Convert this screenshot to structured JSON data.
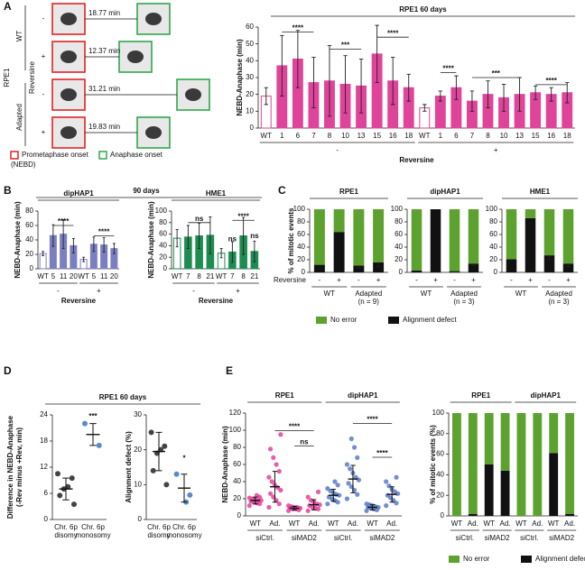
{
  "panel_labels": [
    "A",
    "B",
    "C",
    "D",
    "E"
  ],
  "panel_a": {
    "cell_line": "RPE1",
    "conditions": [
      "WT",
      "Adapted"
    ],
    "treatment": "Reversine",
    "rows": [
      {
        "sign": "-",
        "time": "18.77 min"
      },
      {
        "sign": "+",
        "time": "12.37 min"
      },
      {
        "sign": "-",
        "time": "31.21 min"
      },
      {
        "sign": "+",
        "time": "19.83 min"
      }
    ],
    "legend": [
      "Prometaphase onset",
      "(NEBD)",
      "Anaphase onset"
    ]
  },
  "figure_b_title": "90 days",
  "chart_data": [
    {
      "type": "bar",
      "title": "RPE1 60 days",
      "title_color": "#e0449a",
      "ylabel": "NEBD-Anaphase (min)",
      "ylim": [
        0,
        60
      ],
      "yticks": [
        0,
        10,
        20,
        30,
        40,
        50,
        60
      ],
      "categories": [
        "WT",
        "1",
        "6",
        "7",
        "8",
        "10",
        "13",
        "15",
        "16",
        "18",
        "WT",
        "1",
        "6",
        "7",
        "8",
        "10",
        "13",
        "15",
        "16",
        "18"
      ],
      "values": [
        19,
        37,
        41,
        27,
        28,
        26,
        25,
        44,
        28,
        24,
        12,
        19,
        24,
        16,
        20,
        18,
        20,
        21,
        20,
        21
      ],
      "errors": [
        5,
        18,
        17,
        15,
        21,
        17,
        16,
        17,
        14,
        8,
        2,
        3,
        7,
        6,
        8,
        8,
        10,
        4,
        4,
        6
      ],
      "colors": [
        "#ffffff",
        "#e0449a",
        "#e0449a",
        "#e0449a",
        "#e0449a",
        "#e0449a",
        "#e0449a",
        "#e0449a",
        "#e0449a",
        "#e0449a",
        "#ffffff",
        "#e0449a",
        "#e0449a",
        "#e0449a",
        "#e0449a",
        "#e0449a",
        "#e0449a",
        "#e0449a",
        "#e0449a",
        "#e0449a"
      ],
      "color": "#e0449a",
      "groups": [
        "-",
        "+"
      ],
      "group_title": "Reversine",
      "significance": [
        "****",
        "***",
        "****",
        "****",
        "***",
        "****"
      ]
    },
    {
      "type": "bar",
      "title": "dipHAP1",
      "title_color": "#7b7fc2",
      "ylabel": "NEBD-Anaphase (min)",
      "ylim": [
        0,
        80
      ],
      "yticks": [
        0,
        20,
        40,
        60,
        80
      ],
      "categories": [
        "WT",
        "5",
        "11",
        "20",
        "WT",
        "5",
        "11",
        "20"
      ],
      "values": [
        21,
        46,
        48,
        32,
        13,
        34,
        33,
        28
      ],
      "errors": [
        3,
        15,
        20,
        10,
        3,
        10,
        10,
        7
      ],
      "colors": [
        "#ffffff",
        "#7b7fc2",
        "#7b7fc2",
        "#7b7fc2",
        "#ffffff",
        "#7b7fc2",
        "#7b7fc2",
        "#7b7fc2"
      ],
      "color": "#7b7fc2",
      "groups": [
        "-",
        "+"
      ],
      "group_title": "Reversine",
      "significance": [
        "****",
        "****"
      ]
    },
    {
      "type": "bar",
      "title": "HME1",
      "title_color": "#1e8c50",
      "ylabel": "NEBD-Anaphase (min)",
      "ylim": [
        0,
        100
      ],
      "yticks": [
        0,
        20,
        40,
        60,
        80,
        100
      ],
      "categories": [
        "WT",
        "7",
        "8",
        "21",
        "WT",
        "7",
        "8",
        "21"
      ],
      "values": [
        53,
        55,
        57,
        58,
        27,
        29,
        57,
        30
      ],
      "errors": [
        15,
        20,
        22,
        32,
        8,
        18,
        32,
        18
      ],
      "colors": [
        "#ffffff",
        "#1e8c50",
        "#1e8c50",
        "#1e8c50",
        "#ffffff",
        "#1e8c50",
        "#1e8c50",
        "#1e8c50"
      ],
      "color": "#1e8c50",
      "groups": [
        "-",
        "+"
      ],
      "group_title": "Reversine",
      "significance": [
        "ns",
        "****",
        "ns",
        "ns"
      ]
    },
    {
      "type": "stacked_bar",
      "title": "RPE1",
      "title_color": "#e0449a",
      "ylabel": "% of mitotic events",
      "ylim": [
        0,
        100
      ],
      "yticks": [
        0,
        20,
        40,
        60,
        80,
        100
      ],
      "categories": [
        "-",
        "+",
        "-",
        "+"
      ],
      "row_label": "Reversine",
      "groups": [
        [
          "WT"
        ],
        [
          "Adapted",
          "(n = 9)"
        ]
      ],
      "series": [
        {
          "name": "No error",
          "color": "#5da12e",
          "values": [
            88,
            36,
            89,
            84
          ]
        },
        {
          "name": "Alignment defect",
          "color": "#111111",
          "values": [
            12,
            64,
            11,
            16
          ],
          "errors": [
            null,
            null,
            4,
            7
          ]
        }
      ]
    },
    {
      "type": "stacked_bar",
      "title": "dipHAP1",
      "title_color": "#7b7fc2",
      "ylim": [
        0,
        100
      ],
      "yticks": [
        0,
        20,
        40,
        60,
        80,
        100
      ],
      "categories": [
        "-",
        "+",
        "-",
        "+"
      ],
      "groups": [
        [
          "WT"
        ],
        [
          "Adapted",
          "(n = 3)"
        ]
      ],
      "series": [
        {
          "name": "No error",
          "color": "#5da12e",
          "values": [
            97,
            0,
            98,
            86
          ]
        },
        {
          "name": "Alignment defect",
          "color": "#111111",
          "values": [
            3,
            100,
            2,
            14
          ],
          "errors": [
            null,
            null,
            1,
            3
          ]
        }
      ]
    },
    {
      "type": "stacked_bar",
      "title": "HME1",
      "title_color": "#1e8c50",
      "ylim": [
        0,
        100
      ],
      "yticks": [
        0,
        20,
        40,
        60,
        80,
        100
      ],
      "categories": [
        "-",
        "+",
        "-",
        "+"
      ],
      "groups": [
        [
          "WT"
        ],
        [
          "Adapted",
          "(n = 3)"
        ]
      ],
      "series": [
        {
          "name": "No error",
          "color": "#5da12e",
          "values": [
            79,
            14,
            73,
            86
          ]
        },
        {
          "name": "Alignment defect",
          "color": "#111111",
          "values": [
            21,
            86,
            27,
            14
          ],
          "errors": [
            null,
            null,
            6,
            5
          ]
        }
      ]
    },
    {
      "type": "dot",
      "title": "RPE1 60 days",
      "title_color": "#e0449a",
      "ylabel": [
        "Difference in NEBD-Anaphase",
        "(-Rev minus +Rev, min)"
      ],
      "ylim": [
        0,
        24
      ],
      "yticks": [
        0,
        6,
        12,
        18,
        24
      ],
      "categories": [
        [
          "Chr. 6p",
          "disomy"
        ],
        [
          "Chr. 6p",
          "monosomy"
        ]
      ],
      "points": [
        [
          10.5,
          9.5,
          7.5,
          7,
          5.5,
          3.5
        ],
        [
          22,
          17
        ]
      ],
      "means": [
        7,
        19.5
      ],
      "sds": [
        2.5,
        2.5
      ],
      "point_colors": [
        "#222222",
        "#3a78c0"
      ],
      "significance": [
        "***"
      ]
    },
    {
      "type": "dot",
      "ylabel": "Alignment defect (%)",
      "ylim": [
        0,
        30
      ],
      "yticks": [
        0,
        10,
        20,
        30
      ],
      "categories": [
        [
          "Chr. 6p",
          "disomy"
        ],
        [
          "Chr. 6p",
          "monosomy"
        ]
      ],
      "points": [
        [
          25,
          21,
          20,
          19,
          14,
          10
        ],
        [
          13,
          7,
          5
        ]
      ],
      "means": [
        19.5,
        9
      ],
      "sds": [
        5.5,
        4
      ],
      "point_colors": [
        "#222222",
        "#3a78c0"
      ],
      "significance": [
        "*"
      ]
    },
    {
      "type": "dot",
      "titles": [
        "RPE1",
        "dipHAP1"
      ],
      "title_colors": [
        "#e0449a",
        "#5a7bc4"
      ],
      "ylabel": "NEBD-Anaphase (min)",
      "ylim": [
        0,
        120
      ],
      "yticks": [
        0,
        20,
        40,
        60,
        80,
        100,
        120
      ],
      "categories": [
        "WT",
        "Ad.",
        "WT",
        "Ad.",
        "WT",
        "Ad.",
        "WT",
        "Ad."
      ],
      "groups": [
        "siCtrl.",
        "siMAD2",
        "siCtrl.",
        "siMAD2"
      ],
      "points": [
        [
          12,
          14,
          15,
          16,
          17,
          18,
          18,
          19,
          20,
          21,
          22,
          24
        ],
        [
          10,
          14,
          18,
          22,
          26,
          30,
          33,
          36,
          40,
          45,
          52,
          60,
          68,
          78,
          95
        ],
        [
          6,
          7,
          8,
          8,
          9,
          9,
          10,
          10,
          11,
          12
        ],
        [
          6,
          8,
          9,
          10,
          12,
          13,
          14,
          16,
          18,
          22,
          28
        ],
        [
          14,
          16,
          18,
          20,
          22,
          24,
          25,
          27,
          29,
          32,
          36,
          40
        ],
        [
          20,
          25,
          30,
          34,
          38,
          42,
          45,
          50,
          55,
          60,
          68,
          80,
          90
        ],
        [
          6,
          7,
          8,
          9,
          10,
          10,
          11,
          12,
          13,
          14
        ],
        [
          12,
          15,
          18,
          21,
          24,
          26,
          28,
          31,
          35,
          40,
          45
        ]
      ],
      "means": [
        18,
        34,
        9,
        13,
        24,
        43,
        10,
        25
      ],
      "sds": [
        4,
        18,
        2,
        6,
        7,
        16,
        3,
        9
      ],
      "point_colors": [
        "#e0449a",
        "#e0449a",
        "#e0449a",
        "#e0449a",
        "#5a7bc4",
        "#5a7bc4",
        "#5a7bc4",
        "#5a7bc4"
      ],
      "significance": [
        "****",
        "ns",
        "****",
        "****"
      ]
    },
    {
      "type": "stacked_bar",
      "titles": [
        "RPE1",
        "dipHAP1"
      ],
      "title_colors": [
        "#e0449a",
        "#5a7bc4"
      ],
      "ylabel": "% of mitotic events (%)",
      "ylim": [
        0,
        100
      ],
      "yticks": [
        0,
        20,
        40,
        60,
        80,
        100
      ],
      "categories": [
        "WT",
        "Ad.",
        "WT",
        "Ad.",
        "WT",
        "Ad.",
        "WT",
        "Ad."
      ],
      "groups": [
        "siCtrl.",
        "siMAD2",
        "siCtrl.",
        "siMAD2"
      ],
      "series": [
        {
          "name": "No error",
          "color": "#5da12e",
          "values": [
            100,
            98,
            50,
            56,
            100,
            100,
            39,
            98
          ]
        },
        {
          "name": "Alignment defect",
          "color": "#111111",
          "values": [
            0,
            2,
            50,
            44,
            0,
            0,
            61,
            2
          ]
        }
      ]
    }
  ]
}
